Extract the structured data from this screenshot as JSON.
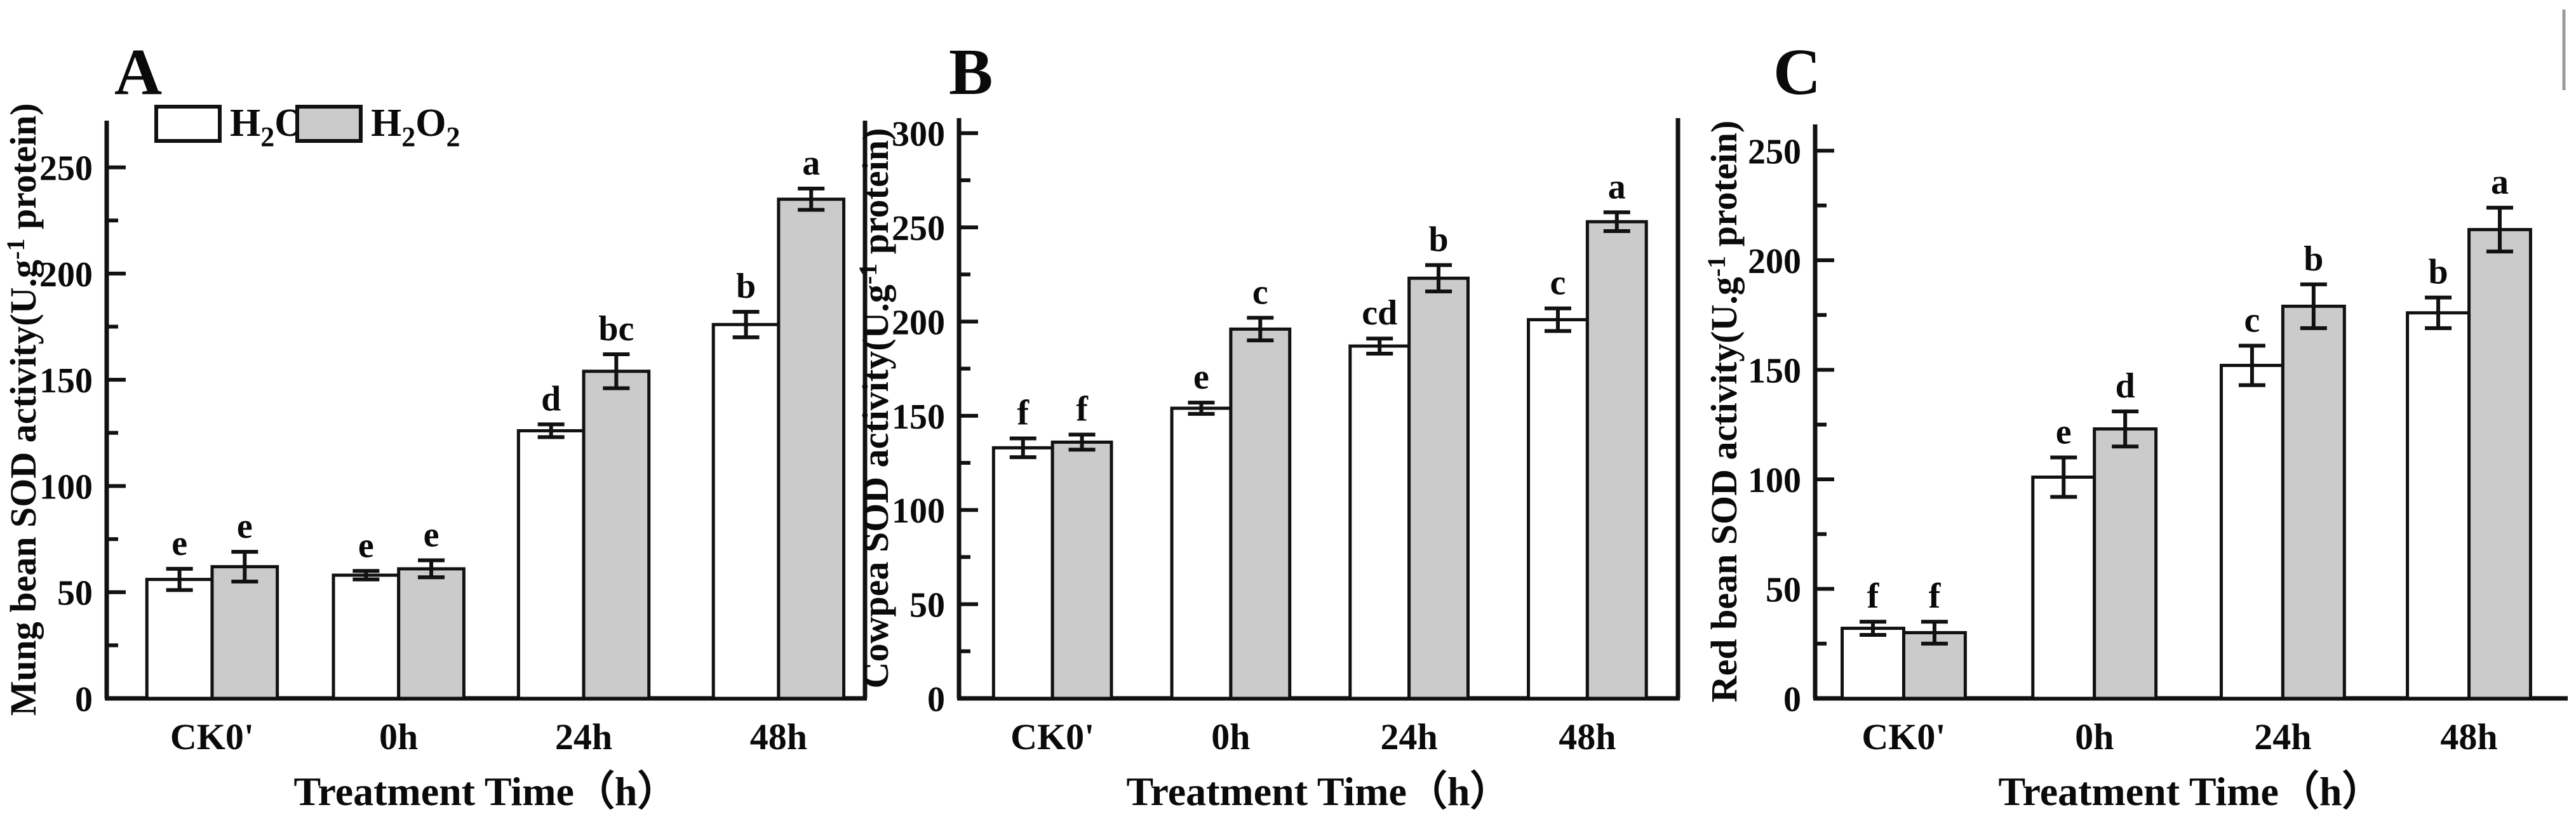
{
  "figure": {
    "background": "#ffffff",
    "bar_outline_color": "#111111",
    "h2o2_bar_fill": "#cbcbcb",
    "h2o_bar_fill": "#ffffff",
    "legend": {
      "position": "top-left-panel-A",
      "items": [
        {
          "label": "H2O",
          "fill": "#ffffff"
        },
        {
          "label": "H2O2",
          "fill": "#cbcbcb"
        }
      ]
    },
    "decorations": {
      "top_right_line_color": "#9b9b9b"
    }
  },
  "chart_data": [
    {
      "panel_label": "A",
      "type": "bar",
      "title": "",
      "ylabel": "Mung bean SOD activity(U.g^-1 protein)",
      "xlabel": "Treatment Time（h）",
      "categories": [
        "CK0'",
        "0h",
        "24h",
        "48h"
      ],
      "yticks": [
        0,
        50,
        100,
        150,
        200,
        250
      ],
      "minor_tick_step": 25,
      "ylim": [
        0,
        272
      ],
      "grid": false,
      "series": [
        {
          "name": "H2O",
          "fill": "#ffffff",
          "values": [
            56,
            58,
            126,
            176
          ],
          "errors": [
            5,
            2,
            3,
            6
          ],
          "sig_letters": [
            "e",
            "e",
            "d",
            "b"
          ]
        },
        {
          "name": "H2O2",
          "fill": "#cbcbcb",
          "values": [
            62,
            61,
            154,
            235
          ],
          "errors": [
            7,
            4,
            8,
            5
          ],
          "sig_letters": [
            "e",
            "e",
            "bc",
            "a"
          ]
        }
      ]
    },
    {
      "panel_label": "B",
      "type": "bar",
      "title": "",
      "ylabel": "Cowpea SOD activity(U.g^-1 protein)",
      "xlabel": "Treatment Time（h）",
      "categories": [
        "CK0'",
        "0h",
        "24h",
        "48h"
      ],
      "yticks": [
        0,
        50,
        100,
        150,
        200,
        250,
        300
      ],
      "minor_tick_step": 25,
      "ylim": [
        0,
        308
      ],
      "grid": false,
      "series": [
        {
          "name": "H2O",
          "fill": "#ffffff",
          "values": [
            133,
            154,
            187,
            201
          ],
          "errors": [
            5,
            3,
            4,
            6
          ],
          "sig_letters": [
            "f",
            "e",
            "cd",
            "c"
          ]
        },
        {
          "name": "H2O2",
          "fill": "#cbcbcb",
          "values": [
            136,
            196,
            223,
            253
          ],
          "errors": [
            4,
            6,
            7,
            5
          ],
          "sig_letters": [
            "f",
            "c",
            "b",
            "a"
          ]
        }
      ]
    },
    {
      "panel_label": "C",
      "type": "bar",
      "title": "",
      "ylabel": "Red bean SOD activity(U.g^-1 protein)",
      "xlabel": "Treatment Time（h）",
      "categories": [
        "CK0'",
        "0h",
        "24h",
        "48h"
      ],
      "yticks": [
        0,
        50,
        100,
        150,
        200,
        250
      ],
      "minor_tick_step": 25,
      "ylim": [
        0,
        262
      ],
      "grid": false,
      "series": [
        {
          "name": "H2O",
          "fill": "#ffffff",
          "values": [
            32,
            101,
            152,
            176
          ],
          "errors": [
            3,
            9,
            9,
            7
          ],
          "sig_letters": [
            "f",
            "e",
            "c",
            "b"
          ]
        },
        {
          "name": "H2O2",
          "fill": "#cbcbcb",
          "values": [
            30,
            123,
            179,
            214
          ],
          "errors": [
            5,
            8,
            10,
            10
          ],
          "sig_letters": [
            "f",
            "d",
            "b",
            "a"
          ]
        }
      ]
    }
  ]
}
